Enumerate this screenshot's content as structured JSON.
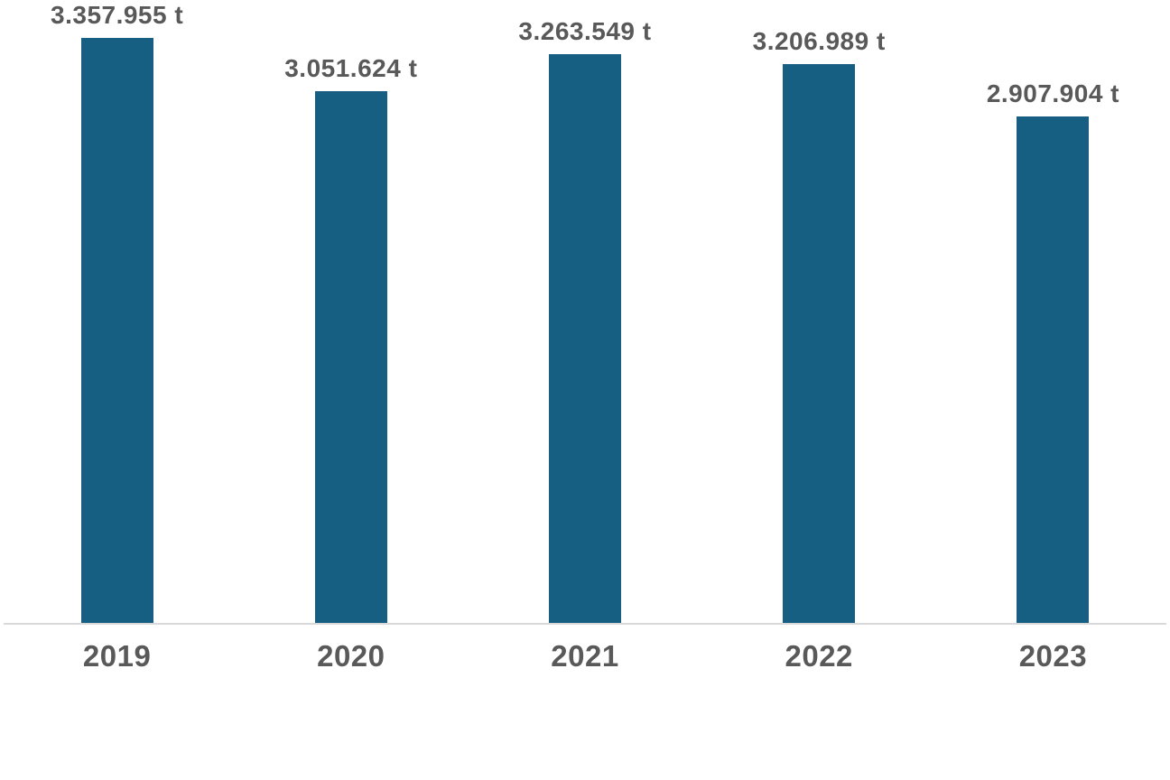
{
  "chart_data": {
    "type": "bar",
    "categories": [
      "2019",
      "2020",
      "2021",
      "2022",
      "2023"
    ],
    "values": [
      3357955,
      3051624,
      3263549,
      3206989,
      2907904
    ],
    "labels": [
      "3.357.955 t",
      "3.051.624 t",
      "3.263.549 t",
      "3.206.989 t",
      "2.907.904 t"
    ],
    "unit": "t",
    "title": "",
    "xlabel": "",
    "ylabel": "",
    "ylim": [
      0,
      3357955
    ],
    "grid": false,
    "legend": false,
    "colors": {
      "bar": "#165E82",
      "label_text": "#595959",
      "axis_line": "#D9D9D9",
      "background": "#FFFFFF"
    }
  }
}
